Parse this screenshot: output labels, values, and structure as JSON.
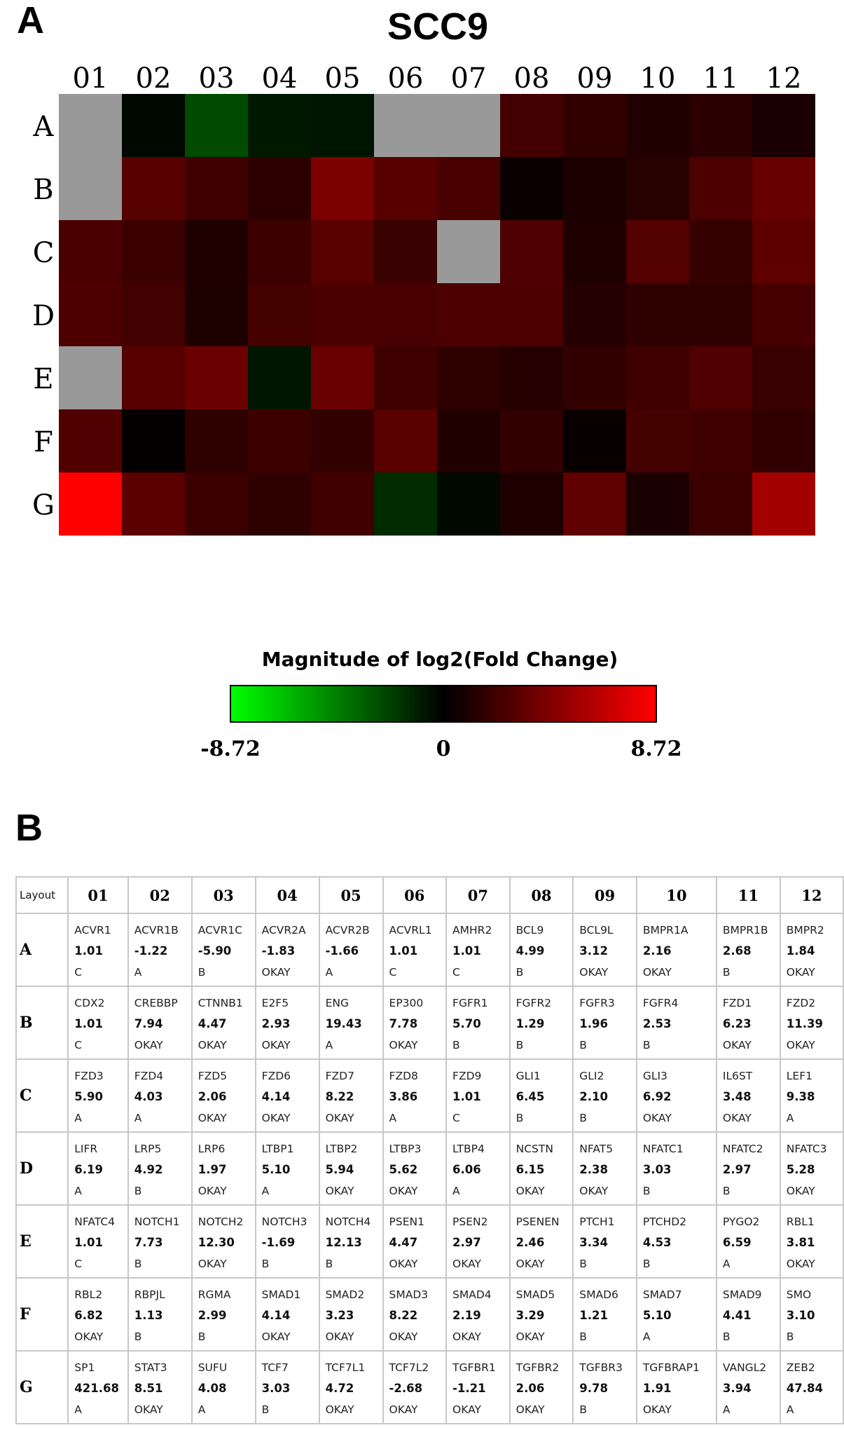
{
  "panel_a_label": "A",
  "panel_b_label": "B",
  "chart_data": [
    {
      "type": "heatmap",
      "title": "SCC9",
      "columns": [
        "01",
        "02",
        "03",
        "04",
        "05",
        "06",
        "07",
        "08",
        "09",
        "10",
        "11",
        "12"
      ],
      "rows": [
        "A",
        "B",
        "C",
        "D",
        "E",
        "F",
        "G"
      ],
      "values": [
        [
          null,
          -1.22,
          -5.9,
          -1.83,
          -1.66,
          null,
          null,
          4.99,
          3.12,
          2.16,
          2.68,
          1.84
        ],
        [
          null,
          7.94,
          4.47,
          2.93,
          19.43,
          7.78,
          5.7,
          1.29,
          1.96,
          2.53,
          6.23,
          11.39
        ],
        [
          5.9,
          4.03,
          2.06,
          4.14,
          8.22,
          3.86,
          null,
          6.45,
          2.1,
          6.92,
          3.48,
          9.38
        ],
        [
          6.19,
          4.92,
          1.97,
          5.1,
          5.94,
          5.62,
          6.06,
          6.15,
          2.38,
          3.03,
          2.97,
          5.28
        ],
        [
          null,
          7.73,
          12.3,
          -1.69,
          12.13,
          4.47,
          2.97,
          2.46,
          3.34,
          4.53,
          6.59,
          3.81
        ],
        [
          6.82,
          1.13,
          2.99,
          4.14,
          3.23,
          8.22,
          2.19,
          3.29,
          1.21,
          5.1,
          4.41,
          3.1
        ],
        [
          421.68,
          8.51,
          4.08,
          3.03,
          4.72,
          -2.68,
          -1.21,
          2.06,
          9.78,
          1.91,
          3.94,
          47.84
        ]
      ],
      "missing_color": "#999999",
      "colorbar": {
        "title": "Magnitude of log2(Fold Change)",
        "min_label": "-8.72",
        "mid_label": "0",
        "max_label": "8.72",
        "min": -8.72,
        "max": 8.72,
        "low_color": "#00ff00",
        "mid_color": "#000000",
        "high_color": "#ff0000"
      }
    },
    {
      "type": "table",
      "corner_label": "Layout",
      "columns": [
        "01",
        "02",
        "03",
        "04",
        "05",
        "06",
        "07",
        "08",
        "09",
        "10",
        "11",
        "12"
      ],
      "rows": [
        {
          "label": "A",
          "cells": [
            {
              "gene": "ACVR1",
              "fc": "1.01",
              "flag": "C"
            },
            {
              "gene": "ACVR1B",
              "fc": "-1.22",
              "flag": "A"
            },
            {
              "gene": "ACVR1C",
              "fc": "-5.90",
              "flag": "B"
            },
            {
              "gene": "ACVR2A",
              "fc": "-1.83",
              "flag": "OKAY"
            },
            {
              "gene": "ACVR2B",
              "fc": "-1.66",
              "flag": "A"
            },
            {
              "gene": "ACVRL1",
              "fc": "1.01",
              "flag": "C"
            },
            {
              "gene": "AMHR2",
              "fc": "1.01",
              "flag": "C"
            },
            {
              "gene": "BCL9",
              "fc": "4.99",
              "flag": "B"
            },
            {
              "gene": "BCL9L",
              "fc": "3.12",
              "flag": "OKAY"
            },
            {
              "gene": "BMPR1A",
              "fc": "2.16",
              "flag": "OKAY"
            },
            {
              "gene": "BMPR1B",
              "fc": "2.68",
              "flag": "B"
            },
            {
              "gene": "BMPR2",
              "fc": "1.84",
              "flag": "OKAY"
            }
          ]
        },
        {
          "label": "B",
          "cells": [
            {
              "gene": "CDX2",
              "fc": "1.01",
              "flag": "C"
            },
            {
              "gene": "CREBBP",
              "fc": "7.94",
              "flag": "OKAY"
            },
            {
              "gene": "CTNNB1",
              "fc": "4.47",
              "flag": "OKAY"
            },
            {
              "gene": "E2F5",
              "fc": "2.93",
              "flag": "OKAY"
            },
            {
              "gene": "ENG",
              "fc": "19.43",
              "flag": "A"
            },
            {
              "gene": "EP300",
              "fc": "7.78",
              "flag": "OKAY"
            },
            {
              "gene": "FGFR1",
              "fc": "5.70",
              "flag": "B"
            },
            {
              "gene": "FGFR2",
              "fc": "1.29",
              "flag": "B"
            },
            {
              "gene": "FGFR3",
              "fc": "1.96",
              "flag": "B"
            },
            {
              "gene": "FGFR4",
              "fc": "2.53",
              "flag": "B"
            },
            {
              "gene": "FZD1",
              "fc": "6.23",
              "flag": "OKAY"
            },
            {
              "gene": "FZD2",
              "fc": "11.39",
              "flag": "OKAY"
            }
          ]
        },
        {
          "label": "C",
          "cells": [
            {
              "gene": "FZD3",
              "fc": "5.90",
              "flag": "A"
            },
            {
              "gene": "FZD4",
              "fc": "4.03",
              "flag": "A"
            },
            {
              "gene": "FZD5",
              "fc": "2.06",
              "flag": "OKAY"
            },
            {
              "gene": "FZD6",
              "fc": "4.14",
              "flag": "OKAY"
            },
            {
              "gene": "FZD7",
              "fc": "8.22",
              "flag": "OKAY"
            },
            {
              "gene": "FZD8",
              "fc": "3.86",
              "flag": "A"
            },
            {
              "gene": "FZD9",
              "fc": "1.01",
              "flag": "C"
            },
            {
              "gene": "GLI1",
              "fc": "6.45",
              "flag": "B"
            },
            {
              "gene": "GLI2",
              "fc": "2.10",
              "flag": "B"
            },
            {
              "gene": "GLI3",
              "fc": "6.92",
              "flag": "OKAY"
            },
            {
              "gene": "IL6ST",
              "fc": "3.48",
              "flag": "OKAY"
            },
            {
              "gene": "LEF1",
              "fc": "9.38",
              "flag": "A"
            }
          ]
        },
        {
          "label": "D",
          "cells": [
            {
              "gene": "LIFR",
              "fc": "6.19",
              "flag": "A"
            },
            {
              "gene": "LRP5",
              "fc": "4.92",
              "flag": "B"
            },
            {
              "gene": "LRP6",
              "fc": "1.97",
              "flag": "OKAY"
            },
            {
              "gene": "LTBP1",
              "fc": "5.10",
              "flag": "A"
            },
            {
              "gene": "LTBP2",
              "fc": "5.94",
              "flag": "OKAY"
            },
            {
              "gene": "LTBP3",
              "fc": "5.62",
              "flag": "OKAY"
            },
            {
              "gene": "LTBP4",
              "fc": "6.06",
              "flag": "A"
            },
            {
              "gene": "NCSTN",
              "fc": "6.15",
              "flag": "OKAY"
            },
            {
              "gene": "NFAT5",
              "fc": "2.38",
              "flag": "OKAY"
            },
            {
              "gene": "NFATC1",
              "fc": "3.03",
              "flag": "B"
            },
            {
              "gene": "NFATC2",
              "fc": "2.97",
              "flag": "B"
            },
            {
              "gene": "NFATC3",
              "fc": "5.28",
              "flag": "OKAY"
            }
          ]
        },
        {
          "label": "E",
          "cells": [
            {
              "gene": "NFATC4",
              "fc": "1.01",
              "flag": "C"
            },
            {
              "gene": "NOTCH1",
              "fc": "7.73",
              "flag": "B"
            },
            {
              "gene": "NOTCH2",
              "fc": "12.30",
              "flag": "OKAY"
            },
            {
              "gene": "NOTCH3",
              "fc": "-1.69",
              "flag": "B"
            },
            {
              "gene": "NOTCH4",
              "fc": "12.13",
              "flag": "B"
            },
            {
              "gene": "PSEN1",
              "fc": "4.47",
              "flag": "OKAY"
            },
            {
              "gene": "PSEN2",
              "fc": "2.97",
              "flag": "OKAY"
            },
            {
              "gene": "PSENEN",
              "fc": "2.46",
              "flag": "OKAY"
            },
            {
              "gene": "PTCH1",
              "fc": "3.34",
              "flag": "B"
            },
            {
              "gene": "PTCHD2",
              "fc": "4.53",
              "flag": "B"
            },
            {
              "gene": "PYGO2",
              "fc": "6.59",
              "flag": "A"
            },
            {
              "gene": "RBL1",
              "fc": "3.81",
              "flag": "OKAY"
            }
          ]
        },
        {
          "label": "F",
          "cells": [
            {
              "gene": "RBL2",
              "fc": "6.82",
              "flag": "OKAY"
            },
            {
              "gene": "RBPJL",
              "fc": "1.13",
              "flag": "B"
            },
            {
              "gene": "RGMA",
              "fc": "2.99",
              "flag": "B"
            },
            {
              "gene": "SMAD1",
              "fc": "4.14",
              "flag": "OKAY"
            },
            {
              "gene": "SMAD2",
              "fc": "3.23",
              "flag": "OKAY"
            },
            {
              "gene": "SMAD3",
              "fc": "8.22",
              "flag": "OKAY"
            },
            {
              "gene": "SMAD4",
              "fc": "2.19",
              "flag": "OKAY"
            },
            {
              "gene": "SMAD5",
              "fc": "3.29",
              "flag": "OKAY"
            },
            {
              "gene": "SMAD6",
              "fc": "1.21",
              "flag": "B"
            },
            {
              "gene": "SMAD7",
              "fc": "5.10",
              "flag": "A"
            },
            {
              "gene": "SMAD9",
              "fc": "4.41",
              "flag": "B"
            },
            {
              "gene": "SMO",
              "fc": "3.10",
              "flag": "B"
            }
          ]
        },
        {
          "label": "G",
          "cells": [
            {
              "gene": "SP1",
              "fc": "421.68",
              "flag": "A"
            },
            {
              "gene": "STAT3",
              "fc": "8.51",
              "flag": "OKAY"
            },
            {
              "gene": "SUFU",
              "fc": "4.08",
              "flag": "A"
            },
            {
              "gene": "TCF7",
              "fc": "3.03",
              "flag": "B"
            },
            {
              "gene": "TCF7L1",
              "fc": "4.72",
              "flag": "OKAY"
            },
            {
              "gene": "TCF7L2",
              "fc": "-2.68",
              "flag": "OKAY"
            },
            {
              "gene": "TGFBR1",
              "fc": "-1.21",
              "flag": "OKAY"
            },
            {
              "gene": "TGFBR2",
              "fc": "2.06",
              "flag": "OKAY"
            },
            {
              "gene": "TGFBR3",
              "fc": "9.78",
              "flag": "B"
            },
            {
              "gene": "TGFBRAP1",
              "fc": "1.91",
              "flag": "OKAY"
            },
            {
              "gene": "VANGL2",
              "fc": "3.94",
              "flag": "A"
            },
            {
              "gene": "ZEB2",
              "fc": "47.84",
              "flag": "A"
            }
          ]
        }
      ]
    }
  ]
}
